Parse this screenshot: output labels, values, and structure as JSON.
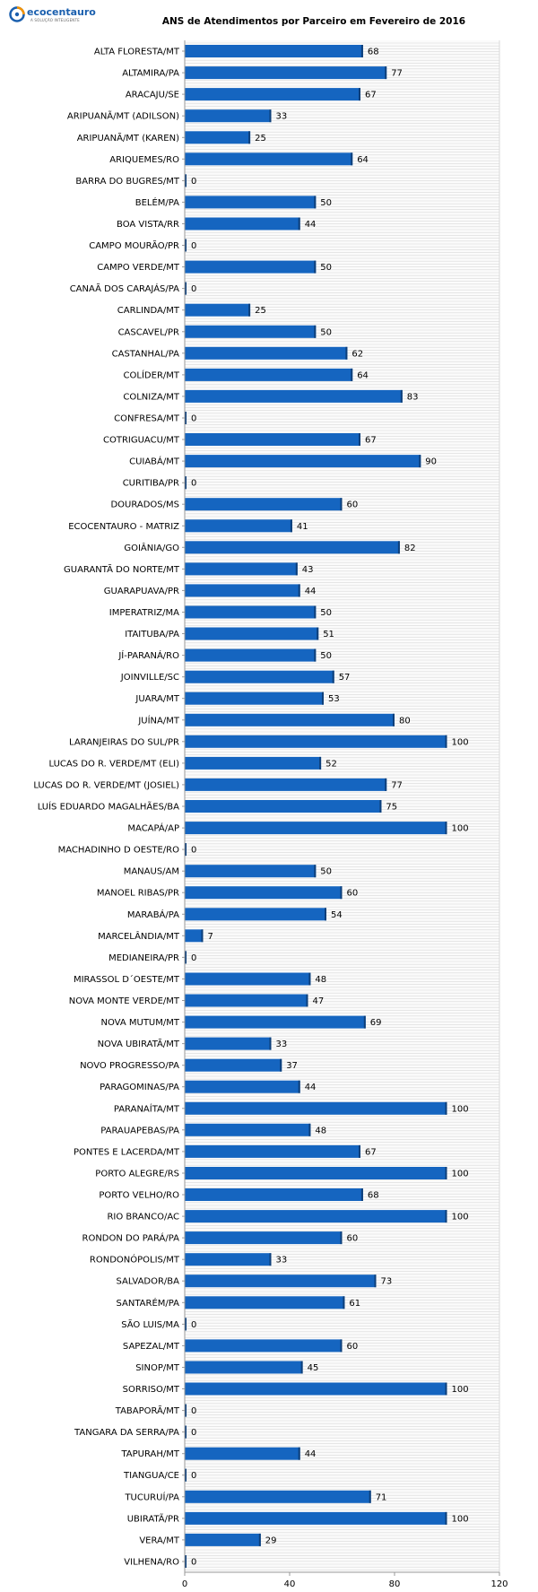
{
  "header": {
    "logo_text": "ecocentauro",
    "logo_tagline": "A SOLUÇÃO INTELIGENTE"
  },
  "colors": {
    "bar": "#1565c0",
    "bar_edge": "#0d3f7a",
    "grid": "#d9d9d9",
    "axis": "#999999",
    "logo_blue": "#1a5fae",
    "logo_orange": "#f39200"
  },
  "chart_data": {
    "type": "bar",
    "orientation": "horizontal",
    "title": "ANS de Atendimentos por Parceiro em Fevereiro de 2016",
    "xlabel": "",
    "ylabel": "",
    "xlim": [
      0,
      120
    ],
    "xticks": [
      "0",
      "40",
      "80",
      "120"
    ],
    "grid": true,
    "categories": [
      "ALTA FLORESTA/MT",
      "ALTAMIRA/PA",
      "ARACAJU/SE",
      "ARIPUANÃ/MT (ADILSON)",
      "ARIPUANÃ/MT (KAREN)",
      "ARIQUEMES/RO",
      "BARRA DO BUGRES/MT",
      "BELÉM/PA",
      "BOA VISTA/RR",
      "CAMPO MOURÃO/PR",
      "CAMPO VERDE/MT",
      "CANAÃ DOS CARAJÁS/PA",
      "CARLINDA/MT",
      "CASCAVEL/PR",
      "CASTANHAL/PA",
      "COLÍDER/MT",
      "COLNIZA/MT",
      "CONFRESA/MT",
      "COTRIGUACU/MT",
      "CUIABÁ/MT",
      "CURITIBA/PR",
      "DOURADOS/MS",
      "ECOCENTAURO - MATRIZ",
      "GOIÂNIA/GO",
      "GUARANTÃ DO NORTE/MT",
      "GUARAPUAVA/PR",
      "IMPERATRIZ/MA",
      "ITAITUBA/PA",
      "JÍ-PARANÁ/RO",
      "JOINVILLE/SC",
      "JUARA/MT",
      "JUÍNA/MT",
      "LARANJEIRAS DO SUL/PR",
      "LUCAS DO R. VERDE/MT (ELI)",
      "LUCAS DO R. VERDE/MT (JOSIEL)",
      "LUÍS EDUARDO MAGALHÃES/BA",
      "MACAPÁ/AP",
      "MACHADINHO D OESTE/RO",
      "MANAUS/AM",
      "MANOEL RIBAS/PR",
      "MARABÁ/PA",
      "MARCELÂNDIA/MT",
      "MEDIANEIRA/PR",
      "MIRASSOL D´OESTE/MT",
      "NOVA MONTE VERDE/MT",
      "NOVA MUTUM/MT",
      "NOVA UBIRATÃ/MT",
      "NOVO PROGRESSO/PA",
      "PARAGOMINAS/PA",
      "PARANAÍTA/MT",
      "PARAUAPEBAS/PA",
      "PONTES E LACERDA/MT",
      "PORTO ALEGRE/RS",
      "PORTO VELHO/RO",
      "RIO BRANCO/AC",
      "RONDON DO PARÁ/PA",
      "RONDONÓPOLIS/MT",
      "SALVADOR/BA",
      "SANTARÉM/PA",
      "SÃO LUIS/MA",
      "SAPEZAL/MT",
      "SINOP/MT",
      "SORRISO/MT",
      "TABAPORÃ/MT",
      "TANGARA DA SERRA/PA",
      "TAPURAH/MT",
      "TIANGUA/CE",
      "TUCURUÍ/PA",
      "UBIRATÃ/PR",
      "VERA/MT",
      "VILHENA/RO"
    ],
    "values": [
      68,
      77,
      67,
      33,
      25,
      64,
      0,
      50,
      44,
      0,
      50,
      0,
      25,
      50,
      62,
      64,
      83,
      0,
      67,
      90,
      0,
      60,
      41,
      82,
      43,
      44,
      50,
      51,
      50,
      57,
      53,
      80,
      100,
      52,
      77,
      75,
      100,
      0,
      50,
      60,
      54,
      7,
      0,
      48,
      47,
      69,
      33,
      37,
      44,
      100,
      48,
      67,
      100,
      68,
      100,
      60,
      33,
      73,
      61,
      0,
      60,
      45,
      100,
      0,
      0,
      44,
      0,
      71,
      100,
      29,
      0
    ]
  }
}
